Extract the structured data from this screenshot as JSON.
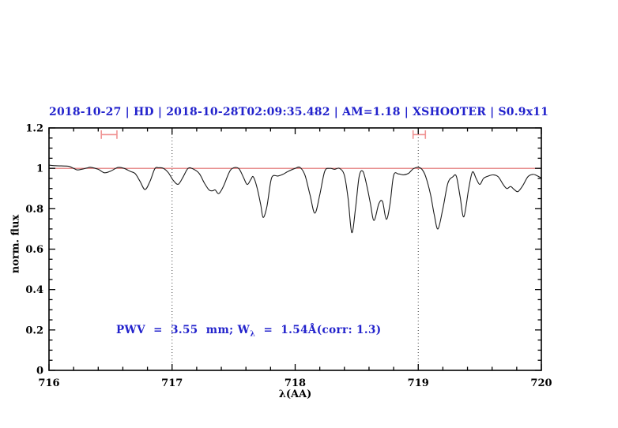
{
  "colors": {
    "title": "#2222cc",
    "annotation": "#2222cc",
    "axis": "#000000",
    "spectrum": "#1c1c1c",
    "continuum": "#e06a6a",
    "error_bar": "#f09494",
    "reference_line": "#3a3a3a"
  },
  "annotation": {
    "prefix": "PWV  =  3.55  mm; W",
    "subscript": "λ",
    "suffix": "  =  1.54Å(corr: 1.3)"
  },
  "chart_data": {
    "type": "line",
    "title": "2018-10-27 | HD | 2018-10-28T02:09:35.482 | AM=1.18 | XSHOOTER | S0.9x11",
    "xlabel": "λ(AA)",
    "ylabel": "norm. flux",
    "xlim": [
      716,
      720
    ],
    "ylim": [
      0,
      1.2
    ],
    "grid": "off",
    "legend": "none",
    "x_major_ticks": [
      716,
      717,
      718,
      719,
      720
    ],
    "x_tick_labels": [
      "716",
      "717",
      "718",
      "719",
      "720"
    ],
    "x_minor_step": 0.2,
    "y_major_ticks": [
      0,
      0.2,
      0.4,
      0.6,
      0.8,
      1,
      1.2
    ],
    "y_tick_labels": [
      "0",
      "0.2",
      "0.4",
      "0.6",
      "0.8",
      "1",
      "1.2"
    ],
    "y_minor_step": 0.05,
    "vlines_dotted": [
      717,
      719
    ],
    "continuum_line": {
      "y": 1.0
    },
    "error_bars": {
      "y": 1.167,
      "cap_half_height": 0.021,
      "intervals": [
        [
          716.425,
          716.552
        ],
        [
          718.958,
          719.058
        ]
      ]
    },
    "series": [
      {
        "name": "spectrum",
        "points": [
          [
            716.0,
            1.016
          ],
          [
            716.05,
            1.013
          ],
          [
            716.1,
            1.012
          ],
          [
            716.16,
            1.01
          ],
          [
            716.2,
            1.0
          ],
          [
            716.23,
            0.992
          ],
          [
            716.27,
            0.996
          ],
          [
            716.31,
            1.002
          ],
          [
            716.34,
            1.005
          ],
          [
            716.4,
            0.995
          ],
          [
            716.45,
            0.978
          ],
          [
            716.5,
            0.986
          ],
          [
            716.56,
            1.004
          ],
          [
            716.61,
            1.0
          ],
          [
            716.66,
            0.985
          ],
          [
            716.7,
            0.974
          ],
          [
            716.74,
            0.935
          ],
          [
            716.78,
            0.895
          ],
          [
            716.82,
            0.935
          ],
          [
            716.86,
            0.998
          ],
          [
            716.89,
            1.003
          ],
          [
            716.93,
            1.0
          ],
          [
            716.97,
            0.978
          ],
          [
            717.01,
            0.94
          ],
          [
            717.05,
            0.921
          ],
          [
            717.09,
            0.958
          ],
          [
            717.13,
            1.0
          ],
          [
            717.17,
            0.997
          ],
          [
            717.22,
            0.975
          ],
          [
            717.26,
            0.93
          ],
          [
            717.3,
            0.893
          ],
          [
            717.33,
            0.889
          ],
          [
            717.35,
            0.893
          ],
          [
            717.38,
            0.875
          ],
          [
            717.42,
            0.915
          ],
          [
            717.46,
            0.975
          ],
          [
            717.49,
            1.0
          ],
          [
            717.54,
            1.0
          ],
          [
            717.58,
            0.955
          ],
          [
            717.61,
            0.92
          ],
          [
            717.64,
            0.945
          ],
          [
            717.66,
            0.958
          ],
          [
            717.69,
            0.905
          ],
          [
            717.72,
            0.82
          ],
          [
            717.74,
            0.757
          ],
          [
            717.77,
            0.81
          ],
          [
            717.8,
            0.93
          ],
          [
            717.82,
            0.963
          ],
          [
            717.86,
            0.962
          ],
          [
            717.9,
            0.97
          ],
          [
            717.94,
            0.984
          ],
          [
            718.0,
            1.0
          ],
          [
            718.04,
            1.004
          ],
          [
            718.08,
            0.965
          ],
          [
            718.12,
            0.87
          ],
          [
            718.16,
            0.778
          ],
          [
            718.2,
            0.87
          ],
          [
            718.24,
            0.985
          ],
          [
            718.28,
            1.0
          ],
          [
            718.32,
            0.995
          ],
          [
            718.36,
            1.0
          ],
          [
            718.4,
            0.965
          ],
          [
            718.43,
            0.85
          ],
          [
            718.46,
            0.682
          ],
          [
            718.49,
            0.8
          ],
          [
            718.52,
            0.96
          ],
          [
            718.55,
            0.985
          ],
          [
            718.58,
            0.92
          ],
          [
            718.61,
            0.83
          ],
          [
            718.64,
            0.742
          ],
          [
            718.68,
            0.825
          ],
          [
            718.71,
            0.835
          ],
          [
            718.74,
            0.748
          ],
          [
            718.77,
            0.82
          ],
          [
            718.8,
            0.965
          ],
          [
            718.84,
            0.972
          ],
          [
            718.88,
            0.968
          ],
          [
            718.92,
            0.975
          ],
          [
            718.96,
            0.998
          ],
          [
            719.0,
            1.005
          ],
          [
            719.03,
            0.995
          ],
          [
            719.06,
            0.96
          ],
          [
            719.1,
            0.87
          ],
          [
            719.13,
            0.77
          ],
          [
            719.16,
            0.7
          ],
          [
            719.2,
            0.8
          ],
          [
            719.24,
            0.925
          ],
          [
            719.28,
            0.958
          ],
          [
            719.31,
            0.96
          ],
          [
            719.34,
            0.86
          ],
          [
            719.37,
            0.76
          ],
          [
            719.41,
            0.9
          ],
          [
            719.44,
            0.982
          ],
          [
            719.47,
            0.95
          ],
          [
            719.5,
            0.92
          ],
          [
            719.53,
            0.95
          ],
          [
            719.57,
            0.962
          ],
          [
            719.61,
            0.968
          ],
          [
            719.65,
            0.958
          ],
          [
            719.69,
            0.92
          ],
          [
            719.72,
            0.9
          ],
          [
            719.75,
            0.91
          ],
          [
            719.78,
            0.895
          ],
          [
            719.81,
            0.885
          ],
          [
            719.85,
            0.915
          ],
          [
            719.89,
            0.958
          ],
          [
            719.93,
            0.97
          ],
          [
            719.96,
            0.965
          ],
          [
            720.0,
            0.952
          ]
        ]
      }
    ]
  }
}
